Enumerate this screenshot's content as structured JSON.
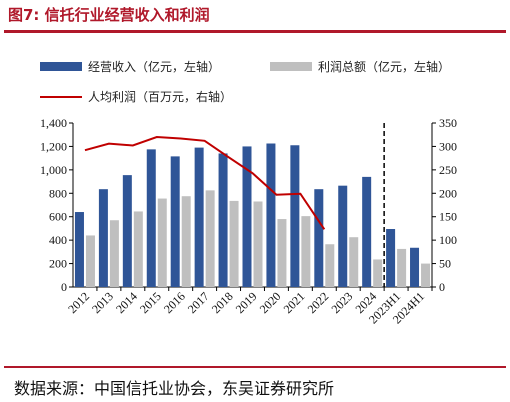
{
  "figure": {
    "title": "图7:  信托行业经营收入和利润",
    "source": "数据来源：中国信托业协会，东吴证券研究所"
  },
  "colors": {
    "title_red": "#b0182a",
    "revenue_bar": "#2f5597",
    "profit_bar": "#bfbfbf",
    "per_capita_line": "#c00000"
  },
  "chart_data": {
    "type": "bar",
    "categories": [
      "2012",
      "2013",
      "2014",
      "2015",
      "2016",
      "2017",
      "2018",
      "2019",
      "2020",
      "2021",
      "2022",
      "2023",
      "2024",
      "2023H1",
      "2024H1"
    ],
    "series": [
      {
        "name": "经营收入（亿元，左轴）",
        "type": "bar",
        "axis": "left",
        "values": [
          640,
          835,
          955,
          1175,
          1115,
          1190,
          1140,
          1200,
          1225,
          1210,
          835,
          865,
          940,
          495,
          335
        ]
      },
      {
        "name": "利润总额（亿元，左轴）",
        "type": "bar",
        "axis": "left",
        "values": [
          440,
          570,
          645,
          755,
          775,
          825,
          735,
          730,
          580,
          605,
          365,
          425,
          235,
          325,
          200
        ]
      },
      {
        "name": "人均利润（百万元，右轴）",
        "type": "line",
        "axis": "right",
        "values": [
          292,
          306,
          302,
          320,
          317,
          312,
          277,
          243,
          197,
          199,
          123,
          null,
          null,
          null,
          null
        ]
      }
    ],
    "y_left": {
      "min": 0,
      "max": 1400,
      "ticks": [
        0,
        200,
        400,
        600,
        800,
        1000,
        1200,
        1400
      ],
      "tick_labels": [
        "0",
        "200",
        "400",
        "600",
        "800",
        "1,000",
        "1,200",
        "1,400"
      ]
    },
    "y_right": {
      "min": 0,
      "max": 350,
      "ticks": [
        0,
        50,
        100,
        150,
        200,
        250,
        300,
        350
      ],
      "tick_labels": [
        "0",
        "50",
        "100",
        "150",
        "200",
        "250",
        "300",
        "350"
      ]
    },
    "separator_after_category": "2024",
    "legend_position": "top",
    "grid": false
  }
}
